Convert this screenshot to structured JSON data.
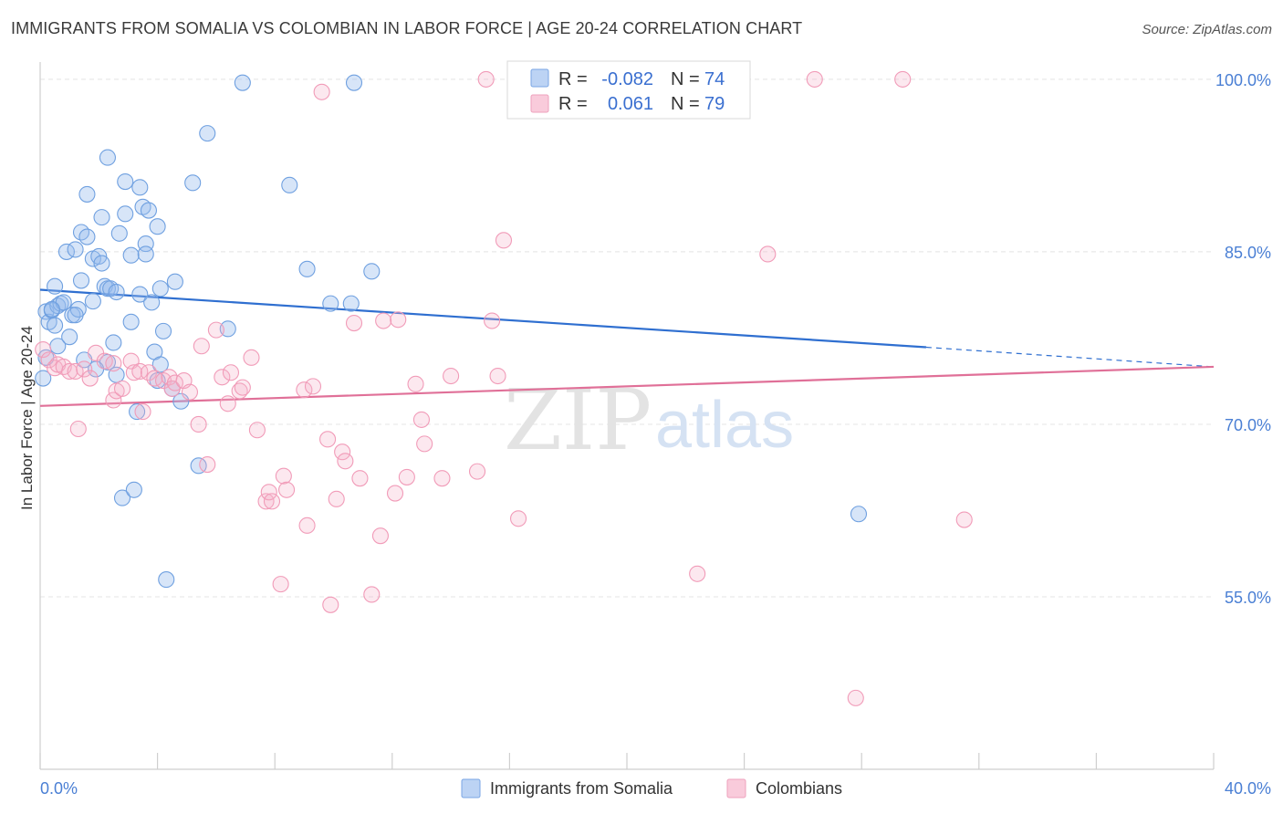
{
  "title": "IMMIGRANTS FROM SOMALIA VS COLOMBIAN IN LABOR FORCE | AGE 20-24 CORRELATION CHART",
  "source": "Source: ZipAtlas.com",
  "watermark": {
    "zip": "ZIP",
    "atlas": "atlas"
  },
  "legend": {
    "r_label": "R =",
    "n_label": "N =",
    "somalia": {
      "r": "-0.082",
      "n": "74"
    },
    "colombian": {
      "r": "0.061",
      "n": "79"
    }
  },
  "bottom_legend": [
    "Immigrants from Somalia",
    "Colombians"
  ],
  "colors": {
    "somalia": "#6fa0e0",
    "somalia_line": "#2f6fd0",
    "colombian": "#f19bb8",
    "colombian_line": "#e07098",
    "axis_label": "#4a7fd4"
  },
  "chart_data": {
    "type": "scatter",
    "title": "IMMIGRANTS FROM SOMALIA VS COLOMBIAN IN LABOR FORCE | AGE 20-24 CORRELATION CHART",
    "xlabel": "",
    "ylabel": "In Labor Force | Age 20-24",
    "xlim": [
      0,
      40
    ],
    "ylim": [
      40,
      101.5
    ],
    "x_tick_labels": [
      "0.0%",
      "40.0%"
    ],
    "y_ticks": [
      55,
      70,
      85,
      100
    ],
    "y_tick_labels": [
      "55.0%",
      "70.0%",
      "85.0%",
      "100.0%"
    ],
    "grid": true,
    "legend_position": "top-center",
    "series": [
      {
        "name": "Immigrants from Somalia",
        "trend": {
          "x": [
            0,
            30.2
          ],
          "y": [
            81.7,
            76.7
          ],
          "dashed_to": [
            40,
            75.0
          ]
        },
        "points": [
          [
            0.1,
            74.0
          ],
          [
            0.2,
            75.8
          ],
          [
            0.2,
            79.8
          ],
          [
            0.3,
            78.9
          ],
          [
            0.4,
            79.9
          ],
          [
            0.5,
            78.6
          ],
          [
            0.5,
            82.0
          ],
          [
            0.6,
            76.8
          ],
          [
            0.6,
            80.3
          ],
          [
            0.7,
            80.5
          ],
          [
            0.8,
            80.6
          ],
          [
            0.9,
            85.0
          ],
          [
            1.0,
            77.6
          ],
          [
            1.1,
            79.5
          ],
          [
            1.2,
            85.2
          ],
          [
            1.3,
            80.0
          ],
          [
            1.4,
            86.7
          ],
          [
            1.4,
            82.5
          ],
          [
            1.6,
            90.0
          ],
          [
            1.6,
            86.3
          ],
          [
            1.8,
            84.4
          ],
          [
            1.8,
            80.7
          ],
          [
            2.0,
            84.6
          ],
          [
            2.1,
            88.0
          ],
          [
            2.1,
            84.0
          ],
          [
            2.2,
            82.0
          ],
          [
            2.3,
            81.8
          ],
          [
            2.3,
            75.4
          ],
          [
            2.3,
            93.2
          ],
          [
            2.4,
            81.8
          ],
          [
            2.5,
            77.1
          ],
          [
            2.6,
            74.3
          ],
          [
            2.6,
            81.5
          ],
          [
            2.7,
            86.6
          ],
          [
            2.8,
            63.6
          ],
          [
            2.9,
            91.1
          ],
          [
            2.9,
            88.3
          ],
          [
            3.1,
            84.7
          ],
          [
            3.1,
            78.9
          ],
          [
            3.2,
            64.3
          ],
          [
            3.3,
            71.1
          ],
          [
            3.4,
            90.6
          ],
          [
            3.4,
            81.3
          ],
          [
            3.5,
            88.9
          ],
          [
            3.6,
            85.7
          ],
          [
            3.6,
            84.8
          ],
          [
            3.7,
            88.6
          ],
          [
            3.8,
            80.6
          ],
          [
            3.9,
            76.3
          ],
          [
            4.0,
            73.8
          ],
          [
            4.0,
            87.2
          ],
          [
            4.1,
            75.2
          ],
          [
            4.1,
            81.8
          ],
          [
            4.2,
            78.1
          ],
          [
            4.3,
            56.5
          ],
          [
            4.5,
            73.1
          ],
          [
            4.6,
            82.4
          ],
          [
            4.8,
            72.0
          ],
          [
            5.2,
            91.0
          ],
          [
            5.4,
            66.4
          ],
          [
            5.7,
            95.3
          ],
          [
            6.4,
            78.3
          ],
          [
            6.9,
            99.7
          ],
          [
            8.5,
            90.8
          ],
          [
            9.1,
            83.5
          ],
          [
            9.9,
            80.5
          ],
          [
            10.6,
            80.5
          ],
          [
            10.7,
            99.7
          ],
          [
            11.3,
            83.3
          ],
          [
            27.9,
            62.2
          ],
          [
            1.2,
            79.5
          ],
          [
            1.9,
            74.8
          ],
          [
            0.4,
            80.0
          ],
          [
            1.5,
            75.6
          ]
        ]
      },
      {
        "name": "Colombians",
        "trend": {
          "x": [
            0,
            40
          ],
          "y": [
            71.6,
            75.0
          ]
        },
        "points": [
          [
            0.1,
            76.5
          ],
          [
            0.3,
            75.6
          ],
          [
            0.5,
            74.9
          ],
          [
            0.6,
            75.2
          ],
          [
            0.8,
            75.0
          ],
          [
            1.0,
            74.6
          ],
          [
            1.2,
            74.6
          ],
          [
            1.3,
            69.6
          ],
          [
            1.5,
            74.8
          ],
          [
            1.7,
            74.0
          ],
          [
            1.9,
            76.2
          ],
          [
            2.2,
            75.5
          ],
          [
            2.5,
            75.3
          ],
          [
            2.5,
            72.1
          ],
          [
            2.6,
            72.9
          ],
          [
            2.8,
            73.1
          ],
          [
            3.1,
            75.5
          ],
          [
            3.2,
            74.5
          ],
          [
            3.4,
            74.6
          ],
          [
            3.5,
            71.1
          ],
          [
            3.7,
            74.5
          ],
          [
            3.9,
            74.0
          ],
          [
            4.2,
            73.8
          ],
          [
            4.4,
            74.1
          ],
          [
            4.5,
            73.1
          ],
          [
            4.6,
            73.6
          ],
          [
            4.9,
            73.8
          ],
          [
            5.1,
            72.8
          ],
          [
            5.4,
            70.0
          ],
          [
            5.5,
            76.8
          ],
          [
            5.7,
            66.5
          ],
          [
            6.0,
            78.2
          ],
          [
            6.2,
            74.1
          ],
          [
            6.4,
            71.8
          ],
          [
            6.5,
            74.5
          ],
          [
            6.8,
            72.9
          ],
          [
            6.9,
            73.2
          ],
          [
            7.2,
            75.8
          ],
          [
            7.4,
            69.5
          ],
          [
            7.7,
            63.3
          ],
          [
            7.8,
            64.1
          ],
          [
            7.9,
            63.3
          ],
          [
            8.2,
            56.1
          ],
          [
            8.3,
            65.5
          ],
          [
            8.4,
            64.3
          ],
          [
            9.0,
            73.0
          ],
          [
            9.1,
            61.2
          ],
          [
            9.3,
            73.3
          ],
          [
            9.6,
            98.9
          ],
          [
            9.8,
            68.7
          ],
          [
            9.9,
            54.3
          ],
          [
            10.1,
            63.5
          ],
          [
            10.3,
            67.6
          ],
          [
            10.4,
            66.8
          ],
          [
            10.7,
            78.8
          ],
          [
            10.9,
            65.3
          ],
          [
            11.3,
            55.2
          ],
          [
            11.6,
            60.3
          ],
          [
            11.7,
            79.0
          ],
          [
            12.1,
            64.0
          ],
          [
            12.2,
            79.1
          ],
          [
            12.5,
            65.4
          ],
          [
            12.8,
            73.5
          ],
          [
            13.0,
            70.4
          ],
          [
            13.1,
            68.3
          ],
          [
            13.7,
            65.3
          ],
          [
            14.0,
            74.2
          ],
          [
            14.9,
            65.9
          ],
          [
            15.2,
            100.0
          ],
          [
            15.4,
            79.0
          ],
          [
            15.6,
            74.2
          ],
          [
            15.8,
            86.0
          ],
          [
            16.3,
            61.8
          ],
          [
            22.4,
            57.0
          ],
          [
            24.8,
            84.8
          ],
          [
            26.4,
            100.0
          ],
          [
            27.8,
            46.2
          ],
          [
            29.4,
            100.0
          ],
          [
            31.5,
            61.7
          ]
        ]
      }
    ]
  }
}
